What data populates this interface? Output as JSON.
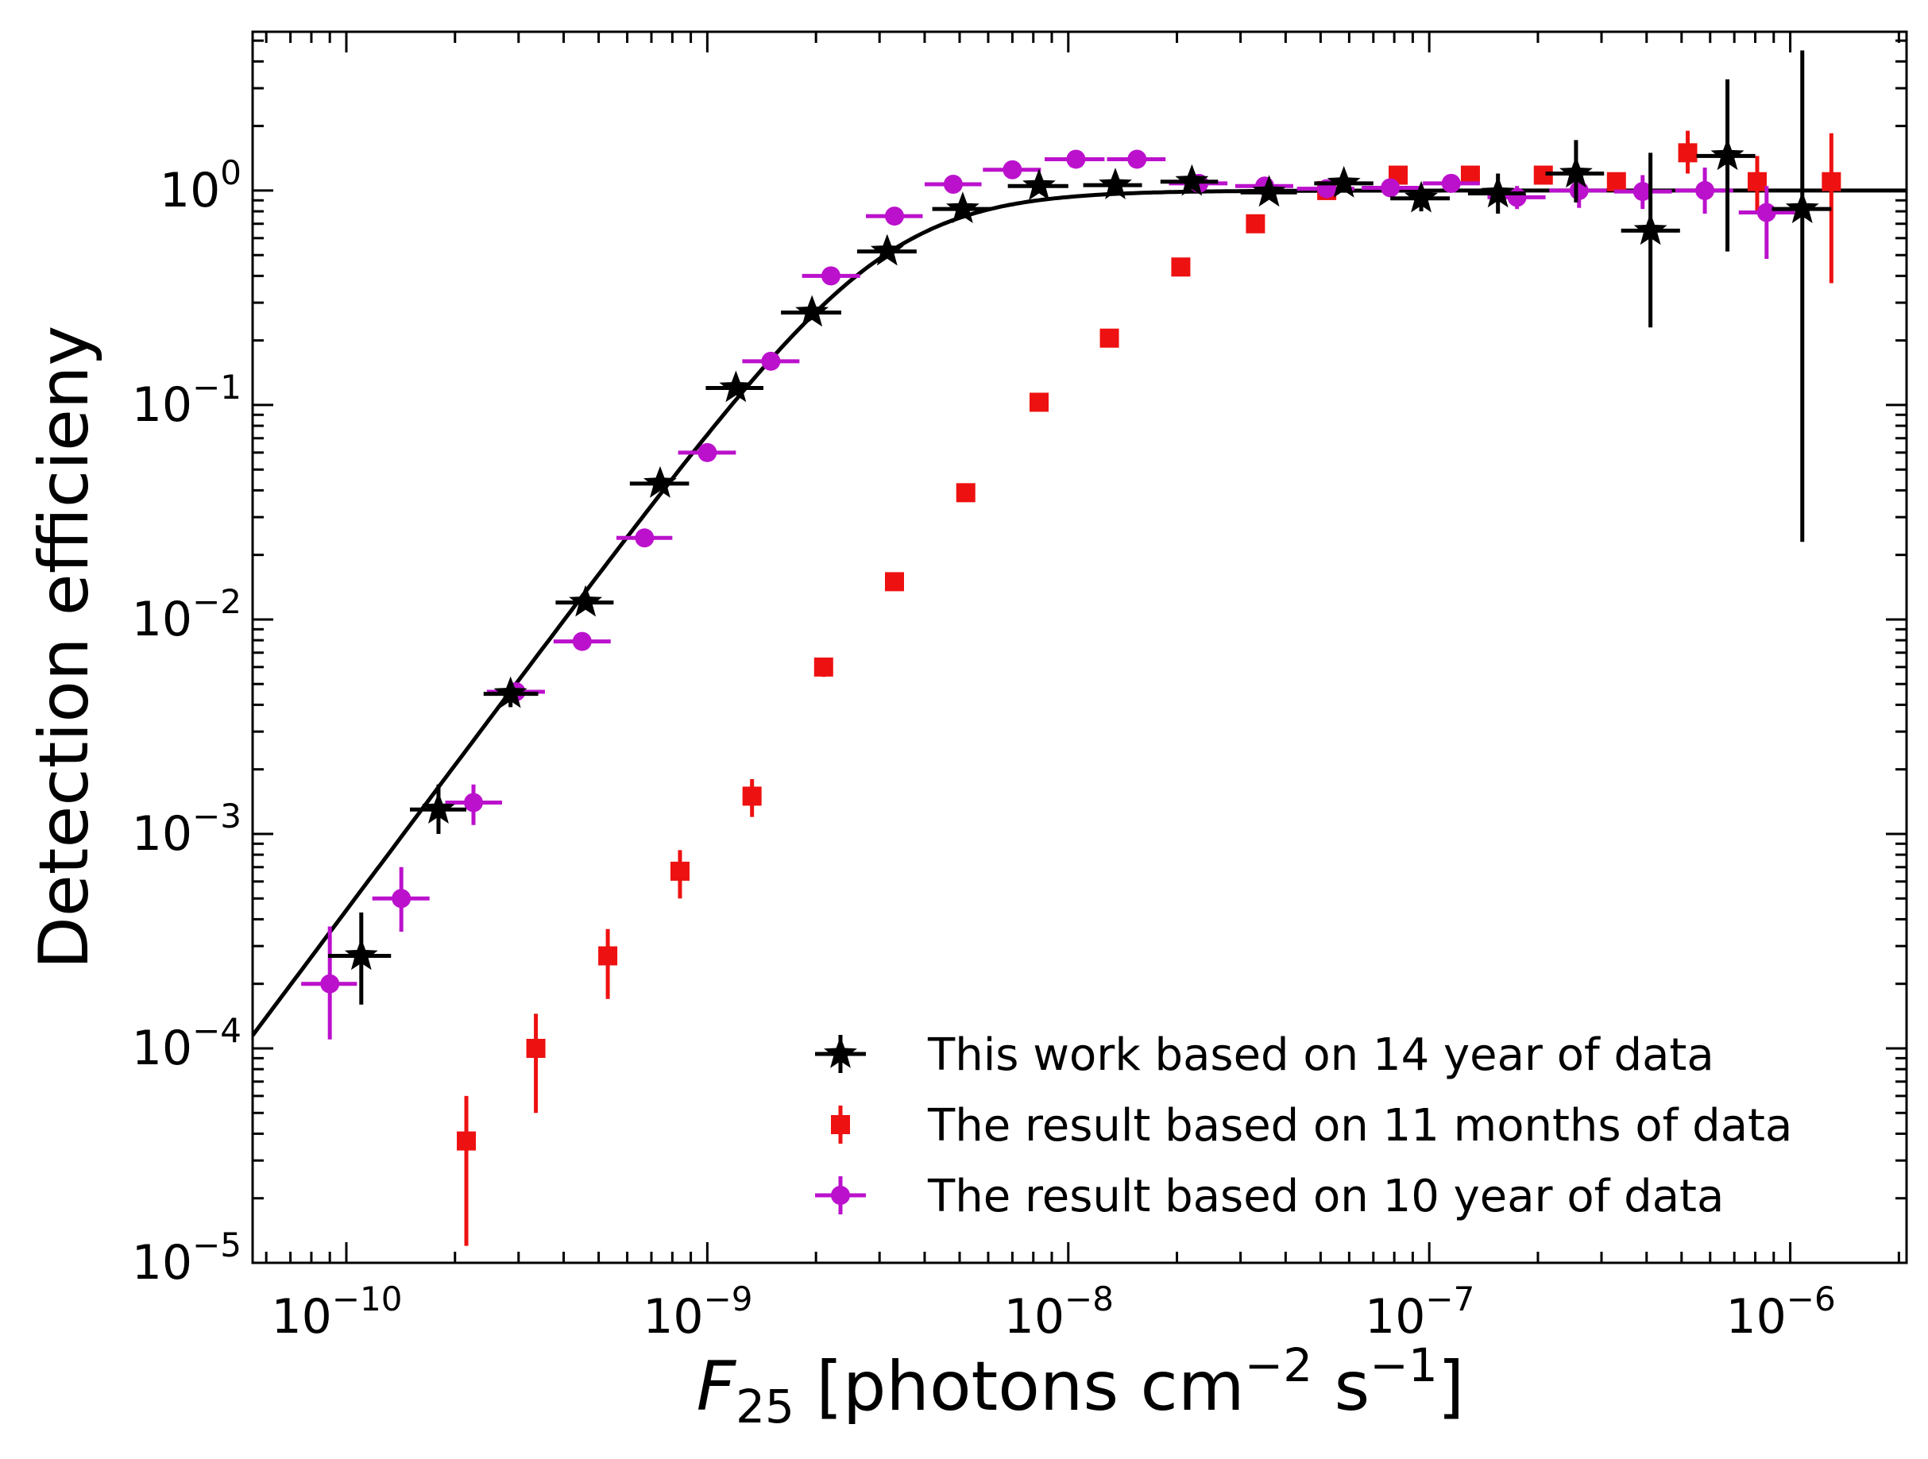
{
  "chart_data": {
    "type": "scatter",
    "title": "",
    "xlabel_italic": "F",
    "xlabel_sub": "25",
    "xlabel_rest": " [photons cm",
    "xlabel_sup1": "−2",
    "xlabel_mid": " s",
    "xlabel_sup2": "−1",
    "xlabel_end": "]",
    "ylabel": "Detection efficieny",
    "xscale": "log",
    "yscale": "log",
    "xlim": [
      5.5e-11,
      2.1e-06
    ],
    "ylim": [
      1e-05,
      5.5
    ],
    "xticks": [
      {
        "value": 1e-10,
        "base": "10",
        "exp": "−10"
      },
      {
        "value": 1e-09,
        "base": "10",
        "exp": "−9"
      },
      {
        "value": 1e-08,
        "base": "10",
        "exp": "−8"
      },
      {
        "value": 1e-07,
        "base": "10",
        "exp": "−7"
      },
      {
        "value": 1e-06,
        "base": "10",
        "exp": "−6"
      }
    ],
    "yticks": [
      {
        "value": 1e-05,
        "base": "10",
        "exp": "−5"
      },
      {
        "value": 0.0001,
        "base": "10",
        "exp": "−4"
      },
      {
        "value": 0.001,
        "base": "10",
        "exp": "−3"
      },
      {
        "value": 0.01,
        "base": "10",
        "exp": "−2"
      },
      {
        "value": 0.1,
        "base": "10",
        "exp": "−1"
      },
      {
        "value": 1,
        "base": "10",
        "exp": "0"
      }
    ],
    "legend_position": "lower-right",
    "fit_curve": {
      "name": "fit",
      "color": "#000000",
      "model": "1/(1+(x0/x)^k)",
      "x0": 3.1e-09,
      "k": 2.25
    },
    "series": [
      {
        "name": "This work based on 14 year of data",
        "marker": "star",
        "color": "#000000",
        "points": [
          {
            "x": 1.1e-10,
            "y": 0.00027,
            "xlo": 8.9e-11,
            "xhi": 1.33e-10,
            "ylo": 0.00016,
            "yhi": 0.00043
          },
          {
            "x": 1.8e-10,
            "y": 0.0013,
            "xlo": 1.5e-10,
            "xhi": 2.15e-10,
            "ylo": 0.001,
            "yhi": 0.0017
          },
          {
            "x": 2.85e-10,
            "y": 0.0045,
            "xlo": 2.4e-10,
            "xhi": 3.4e-10,
            "ylo": 0.0039,
            "yhi": 0.0051
          },
          {
            "x": 4.6e-10,
            "y": 0.012,
            "xlo": 3.8e-10,
            "xhi": 5.5e-10
          },
          {
            "x": 7.4e-10,
            "y": 0.043,
            "xlo": 6.1e-10,
            "xhi": 8.9e-10
          },
          {
            "x": 1.2e-09,
            "y": 0.12,
            "xlo": 9.9e-10,
            "xhi": 1.43e-09
          },
          {
            "x": 1.95e-09,
            "y": 0.27,
            "xlo": 1.6e-09,
            "xhi": 2.35e-09
          },
          {
            "x": 3.15e-09,
            "y": 0.52,
            "xlo": 2.6e-09,
            "xhi": 3.8e-09
          },
          {
            "x": 5.1e-09,
            "y": 0.82,
            "xlo": 4.2e-09,
            "xhi": 6.1e-09
          },
          {
            "x": 8.3e-09,
            "y": 1.05,
            "xlo": 6.8e-09,
            "xhi": 1e-08
          },
          {
            "x": 1.35e-08,
            "y": 1.06,
            "xlo": 1.1e-08,
            "xhi": 1.6e-08
          },
          {
            "x": 2.2e-08,
            "y": 1.1,
            "xlo": 1.8e-08,
            "xhi": 2.6e-08
          },
          {
            "x": 3.6e-08,
            "y": 0.98,
            "xlo": 3e-08,
            "xhi": 4.3e-08
          },
          {
            "x": 5.8e-08,
            "y": 1.08,
            "xlo": 4.8e-08,
            "xhi": 7e-08
          },
          {
            "x": 9.5e-08,
            "y": 0.92,
            "xlo": 7.8e-08,
            "xhi": 1.14e-07,
            "ylo": 0.8,
            "yhi": 1.04
          },
          {
            "x": 1.55e-07,
            "y": 0.97,
            "xlo": 1.28e-07,
            "xhi": 1.85e-07,
            "ylo": 0.78,
            "yhi": 1.2
          },
          {
            "x": 2.55e-07,
            "y": 1.2,
            "xlo": 2.1e-07,
            "xhi": 3.05e-07,
            "ylo": 0.88,
            "yhi": 1.72
          },
          {
            "x": 4.1e-07,
            "y": 0.65,
            "xlo": 3.4e-07,
            "xhi": 4.95e-07,
            "ylo": 0.23,
            "yhi": 1.5
          },
          {
            "x": 6.7e-07,
            "y": 1.45,
            "xlo": 5.5e-07,
            "xhi": 8e-07,
            "ylo": 0.52,
            "yhi": 3.3
          },
          {
            "x": 1.08e-06,
            "y": 0.82,
            "xlo": 8.9e-07,
            "xhi": 1.3e-06,
            "ylo": 0.023,
            "yhi": 4.5
          }
        ]
      },
      {
        "name": "The result based on 11 months of data",
        "marker": "square",
        "color": "#ee1111",
        "points": [
          {
            "x": 2.15e-10,
            "y": 3.7e-05,
            "ylo": 1.2e-05,
            "yhi": 6e-05
          },
          {
            "x": 3.35e-10,
            "y": 0.0001,
            "ylo": 5e-05,
            "yhi": 0.000145
          },
          {
            "x": 5.3e-10,
            "y": 0.00027,
            "ylo": 0.00017,
            "yhi": 0.00036
          },
          {
            "x": 8.4e-10,
            "y": 0.00067,
            "ylo": 0.0005,
            "yhi": 0.00084
          },
          {
            "x": 1.33e-09,
            "y": 0.0015,
            "ylo": 0.0012,
            "yhi": 0.0018
          },
          {
            "x": 2.1e-09,
            "y": 0.006,
            "ylo": 0.0054,
            "yhi": 0.0066
          },
          {
            "x": 3.3e-09,
            "y": 0.015
          },
          {
            "x": 5.2e-09,
            "y": 0.039
          },
          {
            "x": 8.3e-09,
            "y": 0.103
          },
          {
            "x": 1.3e-08,
            "y": 0.205
          },
          {
            "x": 2.05e-08,
            "y": 0.44
          },
          {
            "x": 3.3e-08,
            "y": 0.7
          },
          {
            "x": 5.2e-08,
            "y": 1.0
          },
          {
            "x": 8.2e-08,
            "y": 1.18
          },
          {
            "x": 1.3e-07,
            "y": 1.18
          },
          {
            "x": 2.07e-07,
            "y": 1.18
          },
          {
            "x": 3.3e-07,
            "y": 1.1,
            "ylo": 1.0,
            "yhi": 1.2
          },
          {
            "x": 5.2e-07,
            "y": 1.5,
            "ylo": 1.2,
            "yhi": 1.9
          },
          {
            "x": 8.1e-07,
            "y": 1.1,
            "ylo": 0.8,
            "yhi": 1.45
          },
          {
            "x": 1.3e-06,
            "y": 1.1,
            "ylo": 0.37,
            "yhi": 1.85
          }
        ]
      },
      {
        "name": "The result based on 10 year of data",
        "marker": "circle",
        "color": "#bb11cc",
        "points": [
          {
            "x": 9e-11,
            "y": 0.0002,
            "xlo": 7.5e-11,
            "xhi": 1.07e-10,
            "ylo": 0.00011,
            "yhi": 0.00037
          },
          {
            "x": 1.42e-10,
            "y": 0.0005,
            "xlo": 1.18e-10,
            "xhi": 1.7e-10,
            "ylo": 0.00035,
            "yhi": 0.0007
          },
          {
            "x": 2.25e-10,
            "y": 0.0014,
            "xlo": 1.88e-10,
            "xhi": 2.7e-10,
            "ylo": 0.0011,
            "yhi": 0.0017
          },
          {
            "x": 2.95e-10,
            "y": 0.0046,
            "xlo": 2.45e-10,
            "xhi": 3.55e-10
          },
          {
            "x": 4.5e-10,
            "y": 0.0079,
            "xlo": 3.75e-10,
            "xhi": 5.4e-10
          },
          {
            "x": 6.7e-10,
            "y": 0.024,
            "xlo": 5.6e-10,
            "xhi": 8e-10
          },
          {
            "x": 1e-09,
            "y": 0.06,
            "xlo": 8.3e-10,
            "xhi": 1.2e-09
          },
          {
            "x": 1.5e-09,
            "y": 0.16,
            "xlo": 1.25e-09,
            "xhi": 1.8e-09
          },
          {
            "x": 2.2e-09,
            "y": 0.4,
            "xlo": 1.83e-09,
            "xhi": 2.65e-09
          },
          {
            "x": 3.3e-09,
            "y": 0.76,
            "xlo": 2.75e-09,
            "xhi": 3.95e-09
          },
          {
            "x": 4.8e-09,
            "y": 1.07,
            "xlo": 4e-09,
            "xhi": 5.75e-09
          },
          {
            "x": 7e-09,
            "y": 1.25,
            "xlo": 5.8e-09,
            "xhi": 8.4e-09
          },
          {
            "x": 1.05e-08,
            "y": 1.4,
            "xlo": 8.6e-09,
            "xhi": 1.26e-08
          },
          {
            "x": 1.55e-08,
            "y": 1.4,
            "xlo": 1.28e-08,
            "xhi": 1.86e-08
          },
          {
            "x": 2.3e-08,
            "y": 1.08,
            "xlo": 1.9e-08,
            "xhi": 2.76e-08
          },
          {
            "x": 3.5e-08,
            "y": 1.05,
            "xlo": 2.9e-08,
            "xhi": 4.2e-08
          },
          {
            "x": 5.2e-08,
            "y": 1.02,
            "xlo": 4.3e-08,
            "xhi": 6.2e-08
          },
          {
            "x": 7.8e-08,
            "y": 1.03,
            "xlo": 6.5e-08,
            "xhi": 9.4e-08
          },
          {
            "x": 1.15e-07,
            "y": 1.08,
            "xlo": 9.6e-08,
            "xhi": 1.38e-07
          },
          {
            "x": 1.75e-07,
            "y": 0.93,
            "xlo": 1.45e-07,
            "xhi": 2.1e-07,
            "ylo": 0.82,
            "yhi": 1.05
          },
          {
            "x": 2.6e-07,
            "y": 1.0,
            "xlo": 2.15e-07,
            "xhi": 3.1e-07,
            "ylo": 0.83,
            "yhi": 1.2
          },
          {
            "x": 3.9e-07,
            "y": 0.99,
            "xlo": 3.25e-07,
            "xhi": 4.7e-07,
            "ylo": 0.82,
            "yhi": 1.18
          },
          {
            "x": 5.8e-07,
            "y": 1.0,
            "xlo": 4.8e-07,
            "xhi": 6.95e-07,
            "ylo": 0.78,
            "yhi": 1.28
          },
          {
            "x": 8.6e-07,
            "y": 0.79,
            "xlo": 7.2e-07,
            "xhi": 1.03e-06,
            "ylo": 0.48,
            "yhi": 1.05
          }
        ]
      }
    ]
  }
}
